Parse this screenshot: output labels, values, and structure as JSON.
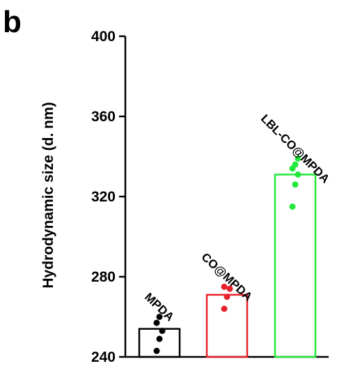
{
  "panel_label": "b",
  "chart_data": {
    "type": "bar",
    "title": "",
    "xlabel": "",
    "ylabel": "Hydrodynamic size (d. nm)",
    "ylim": [
      240,
      400
    ],
    "yticks": [
      240,
      280,
      320,
      360,
      400
    ],
    "grid": false,
    "legend": "none",
    "categories": [
      "MPDA",
      "CO@MPDA",
      "LBL-CO@MPDA"
    ],
    "values": [
      254,
      271,
      331
    ],
    "colors": [
      "#000000",
      "#e8202a",
      "#22e83a"
    ],
    "points": [
      [
        243,
        249,
        253,
        257,
        260
      ],
      [
        264,
        270,
        274,
        275
      ],
      [
        315,
        326,
        331,
        334,
        336,
        339
      ]
    ]
  }
}
